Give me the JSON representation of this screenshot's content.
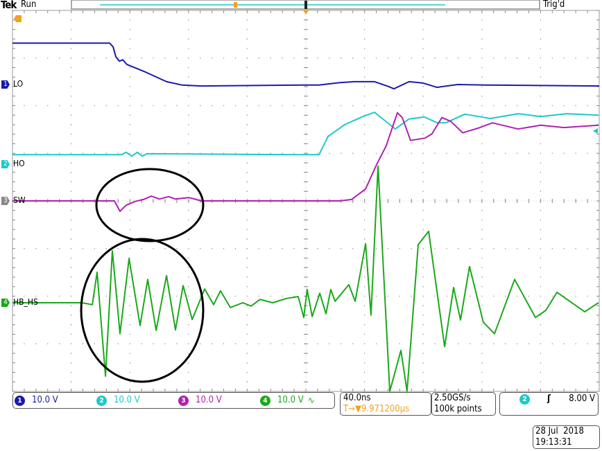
{
  "header": {
    "brand": "Tek",
    "run_state": "Run",
    "trigger_state": "Trig'd"
  },
  "channels": [
    {
      "id": "1",
      "label": "LO",
      "scale": "10.0 V",
      "color": "#1a1aa8"
    },
    {
      "id": "2",
      "label": "HO",
      "scale": "10.0 V",
      "color": "#1fc8c8"
    },
    {
      "id": "3",
      "label": "SW",
      "scale": "10.0 V",
      "color": "#b01fb0"
    },
    {
      "id": "4",
      "label": "HB_HS",
      "scale": "10.0 V",
      "color": "#1aa81a",
      "bw_symbol": "∿"
    }
  ],
  "timebase": {
    "scale": "40.0ns",
    "position": "9.971200µs",
    "position_icon": "T→▼"
  },
  "acquisition": {
    "sample_rate": "2.50GS/s",
    "record_length": "100k points"
  },
  "trigger": {
    "source": "2",
    "slope_icon": "rising-edge",
    "level": "8.00 V"
  },
  "datetime": {
    "date": "28 Jul  2018",
    "time": "19:13:31"
  },
  "colors": {
    "trigger_marker": "#f5a020",
    "graticule": "#888888",
    "annotation": "#000000"
  },
  "chart_data": {
    "type": "line",
    "title": "",
    "xlabel": "",
    "ylabel": "",
    "x_unit": "ns (relative to trigger)",
    "y_unit": "V (relative to channel ground marker)",
    "xlim": [
      -200,
      200
    ],
    "x_div": 40,
    "y_div": 10,
    "grid": true,
    "annotations": [
      "ellipse around SW ringing",
      "ellipse around HB_HS ringing"
    ],
    "series": [
      {
        "name": "LO",
        "channel": "1",
        "points": [
          [
            -200,
            8.7
          ],
          [
            -133.8,
            8.7
          ],
          [
            -131.4,
            7.9
          ],
          [
            -129.5,
            5.8
          ],
          [
            -127.2,
            4.9
          ],
          [
            -124.8,
            5.2
          ],
          [
            -122.0,
            4.2
          ],
          [
            -109.2,
            2.6
          ],
          [
            -95.0,
            0.6
          ],
          [
            -84.6,
            -0.1
          ],
          [
            -71.4,
            -0.3
          ],
          [
            -0.5,
            -0.1
          ],
          [
            9.0,
            -0.1
          ],
          [
            23.2,
            0.4
          ],
          [
            32.6,
            0.6
          ],
          [
            46.8,
            0.6
          ],
          [
            56.3,
            -0.4
          ],
          [
            60.0,
            -0.9
          ],
          [
            70.4,
            0.6
          ],
          [
            79.9,
            0.3
          ],
          [
            89.4,
            -0.6
          ],
          [
            103.5,
            0
          ],
          [
            122.5,
            -0.1
          ],
          [
            200,
            -0.3
          ]
        ]
      },
      {
        "name": "HO",
        "channel": "2",
        "points": [
          [
            -200,
            2.0
          ],
          [
            -125.8,
            2.0
          ],
          [
            -122.5,
            2.5
          ],
          [
            -118.7,
            1.7
          ],
          [
            -114.9,
            2.5
          ],
          [
            -111.6,
            1.7
          ],
          [
            -108.3,
            2.2
          ],
          [
            -0.5,
            2.0
          ],
          [
            9.0,
            2.0
          ],
          [
            15.1,
            5.8
          ],
          [
            26.5,
            8.3
          ],
          [
            38.8,
            10.0
          ],
          [
            46.8,
            10.9
          ],
          [
            61.0,
            7.4
          ],
          [
            70.4,
            9.5
          ],
          [
            80.8,
            9.9
          ],
          [
            89.4,
            8.7
          ],
          [
            95.5,
            8.7
          ],
          [
            108.3,
            10.5
          ],
          [
            125.8,
            9.6
          ],
          [
            144.7,
            10.6
          ],
          [
            160.3,
            10.0
          ],
          [
            177.8,
            10.6
          ],
          [
            199.5,
            10.3
          ]
        ]
      },
      {
        "name": "SW",
        "channel": "3",
        "points": [
          [
            -200,
            0
          ],
          [
            -130.5,
            0
          ],
          [
            -126.7,
            -2.2
          ],
          [
            -122.5,
            -0.9
          ],
          [
            -116.3,
            -0.1
          ],
          [
            -110.6,
            0.3
          ],
          [
            -105.4,
            1.0
          ],
          [
            -99.8,
            0.4
          ],
          [
            -93.6,
            0.9
          ],
          [
            -88.9,
            0.4
          ],
          [
            -79.9,
            0.7
          ],
          [
            -74.7,
            0.3
          ],
          [
            -71.4,
            0
          ],
          [
            23.2,
            0
          ],
          [
            31.2,
            0.3
          ],
          [
            40.7,
            2.5
          ],
          [
            48.2,
            7.6
          ],
          [
            54.8,
            11.6
          ],
          [
            59.6,
            16.0
          ],
          [
            62.4,
            18.5
          ],
          [
            65.7,
            17.5
          ],
          [
            71.4,
            12.7
          ],
          [
            81.3,
            13.2
          ],
          [
            86.0,
            14.1
          ],
          [
            92.7,
            17.5
          ],
          [
            98.8,
            16.7
          ],
          [
            106.9,
            14.3
          ],
          [
            117.7,
            15.3
          ],
          [
            127.2,
            16.4
          ],
          [
            144.7,
            15.1
          ],
          [
            160.3,
            15.9
          ],
          [
            175.9,
            15.4
          ],
          [
            199.5,
            15.9
          ]
        ]
      },
      {
        "name": "HB_HS",
        "channel": "4",
        "points": [
          [
            -200,
            0
          ],
          [
            -152.7,
            0
          ],
          [
            -145.6,
            -0.4
          ],
          [
            -142.3,
            6.4
          ],
          [
            -136.6,
            -15.4
          ],
          [
            -131.9,
            10.9
          ],
          [
            -126.7,
            -6.5
          ],
          [
            -120.5,
            9.3
          ],
          [
            -113.0,
            -4.8
          ],
          [
            -107.8,
            4.9
          ],
          [
            -102.1,
            -5.8
          ],
          [
            -95.0,
            5.7
          ],
          [
            -88.9,
            -5.7
          ],
          [
            -83.7,
            3.6
          ],
          [
            -77.5,
            -3.5
          ],
          [
            -69.0,
            2.9
          ],
          [
            -62.9,
            -0.4
          ],
          [
            -58.2,
            2.5
          ],
          [
            -51.5,
            -1.0
          ],
          [
            -43.0,
            0
          ],
          [
            -37.4,
            -0.7
          ],
          [
            -31.2,
            0.7
          ],
          [
            -22.7,
            0
          ],
          [
            -13.2,
            0.9
          ],
          [
            -5.2,
            1.3
          ],
          [
            -1.4,
            -3.1
          ],
          [
            0.9,
            2.8
          ],
          [
            4.3,
            -2.9
          ],
          [
            9.5,
            2.0
          ],
          [
            13.7,
            -2.3
          ],
          [
            17.0,
            2.8
          ],
          [
            19.9,
            0.3
          ],
          [
            29.3,
            3.8
          ],
          [
            33.6,
            0.3
          ],
          [
            40.7,
            12.4
          ],
          [
            44.4,
            -2.6
          ],
          [
            49.2,
            28.7
          ],
          [
            57.2,
            -18.6
          ],
          [
            64.8,
            -10.0
          ],
          [
            69.0,
            -18.6
          ],
          [
            76.6,
            12.2
          ],
          [
            83.7,
            15.0
          ],
          [
            94.6,
            -9.2
          ],
          [
            100.7,
            3.2
          ],
          [
            105.4,
            -3.6
          ],
          [
            111.6,
            7.6
          ],
          [
            121.0,
            -4.1
          ],
          [
            128.6,
            -6.5
          ],
          [
            142.3,
            4.9
          ],
          [
            156.5,
            -3.1
          ],
          [
            163.6,
            -1.6
          ],
          [
            171.2,
            2.2
          ],
          [
            190.1,
            -1.9
          ],
          [
            199.5,
            0
          ]
        ]
      }
    ]
  }
}
